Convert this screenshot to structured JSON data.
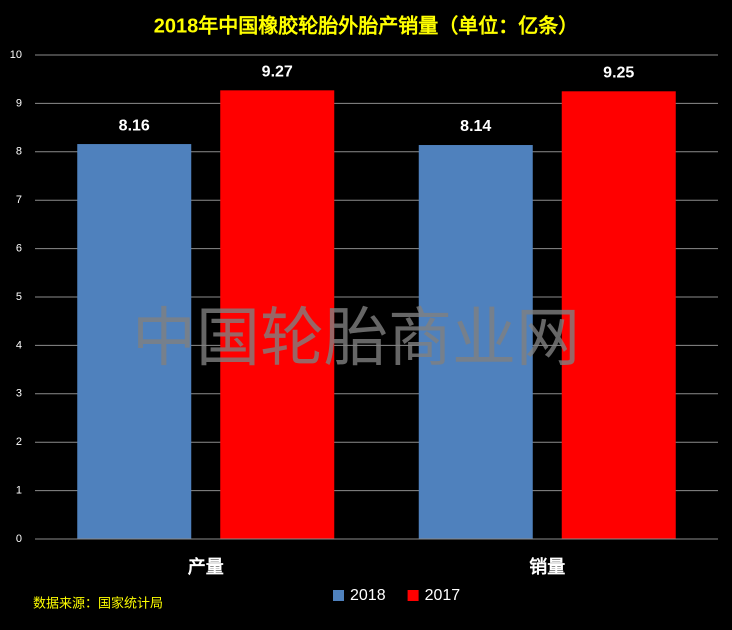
{
  "chart_data": {
    "type": "bar",
    "title": "2018年中国橡胶轮胎外胎产销量（单位：亿条）",
    "categories": [
      "产量",
      "销量"
    ],
    "series": [
      {
        "name": "2018",
        "color": "#4f81bd",
        "values": [
          8.16,
          8.14
        ]
      },
      {
        "name": "2017",
        "color": "#ff0000",
        "values": [
          9.27,
          9.25
        ]
      }
    ],
    "ylim": [
      0,
      10
    ],
    "yticks": [
      0,
      1,
      2,
      3,
      4,
      5,
      6,
      7,
      8,
      9,
      10
    ],
    "grid": true,
    "legend": "bottom",
    "source": "数据来源：国家统计局",
    "watermark": "中国轮胎商业网"
  }
}
